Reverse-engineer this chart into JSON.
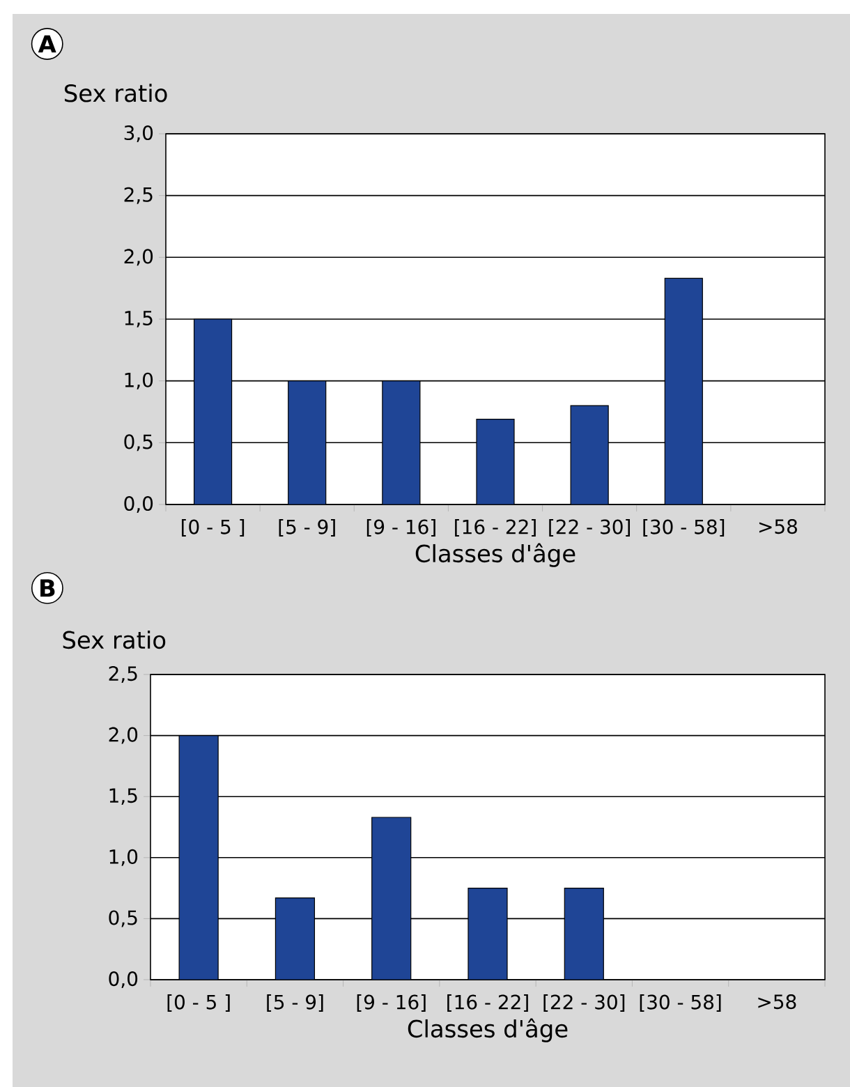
{
  "chart_data": [
    {
      "type": "bar",
      "title": "A",
      "xlabel": "Classes d'âge",
      "ylabel": "Sex ratio",
      "categories": [
        "[0 - 5 ]",
        "[5 - 9]",
        "[9 - 16]",
        "[16 - 22]",
        "[22 - 30]",
        "[30 - 58]",
        ">58"
      ],
      "values": [
        1.5,
        1.0,
        1.0,
        0.69,
        0.8,
        1.83,
        null
      ],
      "color": "#1f4596",
      "ylim": [
        0,
        3
      ],
      "yticks": [
        {
          "value": 0,
          "label": "0,0"
        },
        {
          "value": 0.5,
          "label": "0,5"
        },
        {
          "value": 1,
          "label": "1,0"
        },
        {
          "value": 1.5,
          "label": "1,5"
        },
        {
          "value": 2,
          "label": "2,0"
        },
        {
          "value": 2.5,
          "label": "2,5"
        },
        {
          "value": 3,
          "label": "3,0"
        }
      ],
      "grid": "y"
    },
    {
      "type": "bar",
      "title": "B",
      "xlabel": "Classes d'âge",
      "ylabel": "Sex ratio",
      "categories": [
        "[0 - 5 ]",
        "[5 - 9]",
        "[9 - 16]",
        "[16 - 22]",
        "[22 - 30]",
        "[30 - 58]",
        ">58"
      ],
      "values": [
        2.0,
        0.67,
        1.33,
        0.75,
        0.75,
        null,
        null
      ],
      "color": "#1f4596",
      "ylim": [
        0,
        2.5
      ],
      "yticks": [
        {
          "value": 0,
          "label": "0,0"
        },
        {
          "value": 0.5,
          "label": "0,5"
        },
        {
          "value": 1,
          "label": "1,0"
        },
        {
          "value": 1.5,
          "label": "1,5"
        },
        {
          "value": 2,
          "label": "2,0"
        },
        {
          "value": 2.5,
          "label": "2,5"
        }
      ],
      "grid": "y"
    }
  ]
}
